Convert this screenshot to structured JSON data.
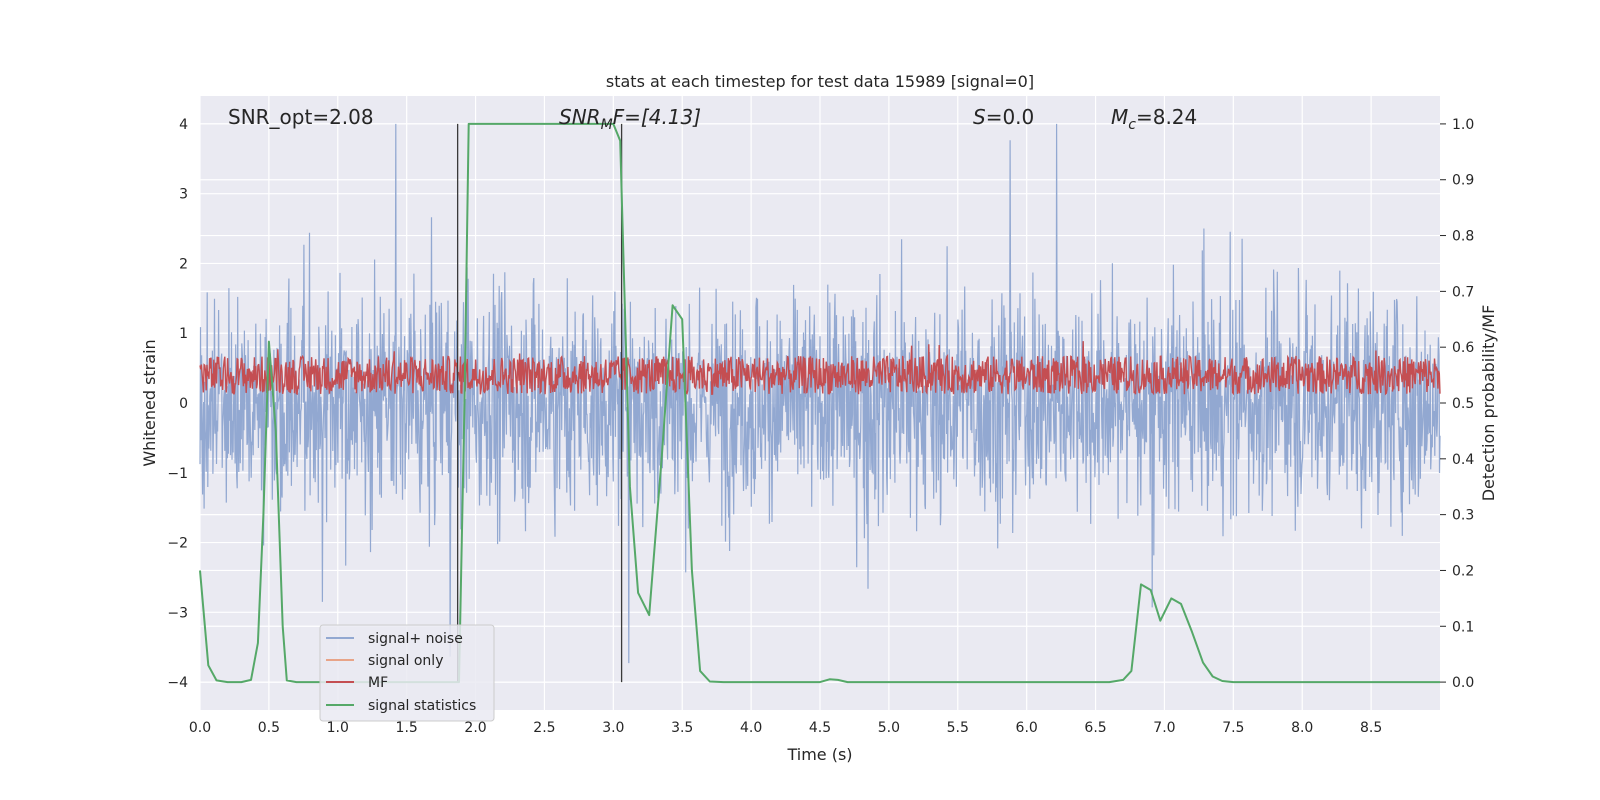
{
  "chart_data": {
    "type": "line",
    "title": "stats at each timestep for test data 15989 [signal=0]",
    "xlabel": "Time (s)",
    "ylabel": "Whitened strain",
    "ylabel_right": "Detection probability/MF",
    "xlim": [
      0,
      9.0
    ],
    "ylim": [
      -4.4,
      4.4
    ],
    "ylim_right": [
      -0.05,
      1.05
    ],
    "x_ticks": [
      "0.0",
      "0.5",
      "1.0",
      "1.5",
      "2.0",
      "2.5",
      "3.0",
      "3.5",
      "4.0",
      "4.5",
      "5.0",
      "5.5",
      "6.0",
      "6.5",
      "7.0",
      "7.5",
      "8.0",
      "8.5"
    ],
    "y_ticks": [
      "4",
      "3",
      "2",
      "1",
      "0",
      "−1",
      "−2",
      "−3",
      "−4"
    ],
    "y_right_ticks": [
      "1.0",
      "0.9",
      "0.8",
      "0.7",
      "0.6",
      "0.5",
      "0.4",
      "0.3",
      "0.2",
      "0.1",
      "0.0"
    ],
    "grid": true,
    "legend_position": "lower-left",
    "annotations": {
      "snr_opt": "SNR_opt=2.08",
      "snr_mf_prefix": "SNR",
      "snr_mf_sub": "M",
      "snr_mf_rest": "F=[4.13]",
      "s_label": "S",
      "s_rest": "=0.0",
      "mc_label": "M",
      "mc_sub": "c",
      "mc_rest": "=8.24"
    },
    "vertical_lines_x": [
      1.87,
      3.06
    ],
    "series": [
      {
        "name": "signal+ noise",
        "color": "#92a8d1",
        "axis": "left",
        "description_values": "dense whitened-strain noise, roughly within ±2.5 with spikes to ±4"
      },
      {
        "name": "signal only",
        "color": "#e8a488",
        "axis": "left",
        "x": [],
        "y": []
      },
      {
        "name": "MF",
        "color": "#c44e52",
        "axis": "left",
        "description_values": "matched-filter output, roughly between 0.1 and 0.8"
      },
      {
        "name": "signal statistics",
        "color": "#55a868",
        "axis": "right",
        "x": [
          0.0,
          0.06,
          0.12,
          0.2,
          0.3,
          0.37,
          0.42,
          0.46,
          0.5,
          0.55,
          0.6,
          0.63,
          0.7,
          0.8,
          1.0,
          1.5,
          1.8,
          1.86,
          1.88,
          1.92,
          1.95,
          2.0,
          2.5,
          3.0,
          3.05,
          3.08,
          3.12,
          3.18,
          3.26,
          3.35,
          3.43,
          3.5,
          3.57,
          3.63,
          3.7,
          3.8,
          4.0,
          4.5,
          4.57,
          4.63,
          4.7,
          5.0,
          6.0,
          6.6,
          6.7,
          6.76,
          6.83,
          6.9,
          6.97,
          7.05,
          7.12,
          7.2,
          7.28,
          7.35,
          7.42,
          7.5,
          8.0,
          9.0
        ],
        "y": [
          0.2,
          0.03,
          0.003,
          0.0,
          0.0,
          0.004,
          0.07,
          0.3,
          0.61,
          0.45,
          0.1,
          0.003,
          0.0,
          0.0,
          0.0,
          0.0,
          0.0,
          0.0,
          0.0,
          0.5,
          1.0,
          1.0,
          1.0,
          1.0,
          0.97,
          0.7,
          0.35,
          0.16,
          0.12,
          0.4,
          0.675,
          0.65,
          0.2,
          0.02,
          0.001,
          0.0,
          0.0,
          0.0,
          0.005,
          0.004,
          0.0,
          0.0,
          0.0,
          0.0,
          0.004,
          0.02,
          0.175,
          0.165,
          0.11,
          0.15,
          0.14,
          0.09,
          0.035,
          0.01,
          0.002,
          0.0,
          0.0,
          0.0
        ]
      }
    ]
  }
}
